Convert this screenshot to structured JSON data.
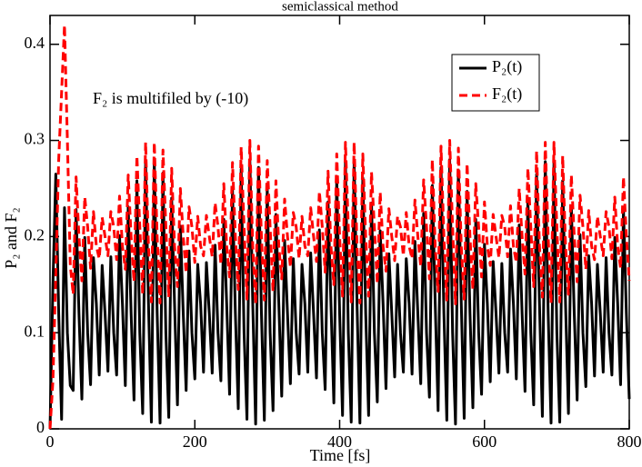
{
  "chart_data": {
    "type": "line",
    "title": "semiclassical method",
    "xlabel": "Time [fs]",
    "ylabel": "P₂ and F₂",
    "annotation": "F₂ is multifiled by (-10)",
    "legend": "upper right",
    "xlim": [
      0,
      800
    ],
    "xticks": [
      0,
      200,
      400,
      600,
      800
    ],
    "ylim": [
      0,
      0.43
    ],
    "yticks": [
      0,
      0.1,
      0.2,
      0.3,
      0.4
    ],
    "x": [
      0,
      4,
      8,
      12,
      16,
      20,
      24,
      28,
      32,
      36,
      40,
      44,
      48,
      52,
      56,
      60,
      64,
      68,
      72,
      76,
      80,
      84,
      88,
      92,
      96,
      100,
      104,
      108,
      112,
      116,
      120,
      124,
      128,
      132,
      136,
      140,
      144,
      148,
      152,
      156,
      160,
      164,
      168,
      172,
      176,
      180,
      184,
      188,
      192,
      196,
      200,
      204,
      208,
      212,
      216,
      220,
      224,
      228,
      232,
      236,
      240,
      244,
      248,
      252,
      256,
      260,
      264,
      268,
      272,
      276,
      280,
      284,
      288,
      292,
      296,
      300,
      304,
      308,
      312,
      316,
      320,
      324,
      328,
      332,
      336,
      340,
      344,
      348,
      352,
      356,
      360,
      364,
      368,
      372,
      376,
      380,
      384,
      388,
      392,
      396,
      400,
      404,
      408,
      412,
      416,
      420,
      424,
      428,
      432,
      436,
      440,
      444,
      448,
      452,
      456,
      460,
      464,
      468,
      472,
      476,
      480,
      484,
      488,
      492,
      496,
      500,
      504,
      508,
      512,
      516,
      520,
      524,
      528,
      532,
      536,
      540,
      544,
      548,
      552,
      556,
      560,
      564,
      568,
      572,
      576,
      580,
      584,
      588,
      592,
      596,
      600,
      604,
      608,
      612,
      616,
      620,
      624,
      628,
      632,
      636,
      640,
      644,
      648,
      652,
      656,
      660,
      664,
      668,
      672,
      676,
      680,
      684,
      688,
      692,
      696,
      700,
      704,
      708,
      712,
      716,
      720,
      724,
      728,
      732,
      736,
      740,
      744,
      748,
      752,
      756,
      760,
      764,
      768,
      772,
      776,
      780,
      784,
      788,
      792,
      796,
      800
    ],
    "series": [
      {
        "name": "P₂(t)",
        "color": "#000000",
        "dash": false,
        "values": [
          0,
          0.15,
          0.265,
          0.12,
          0.01,
          0.23,
          0.1,
          0.045,
          0.04,
          0.228,
          0.12,
          0.031,
          0.199,
          0.1,
          0.046,
          0.178,
          0.13,
          0.056,
          0.17,
          0.12,
          0.06,
          0.179,
          0.1,
          0.056,
          0.201,
          0.13,
          0.045,
          0.231,
          0.12,
          0.03,
          0.258,
          0.1,
          0.016,
          0.277,
          0.13,
          0.007,
          0.278,
          0.12,
          0.006,
          0.266,
          0.1,
          0.012,
          0.24,
          0.13,
          0.025,
          0.211,
          0.12,
          0.04,
          0.185,
          0.1,
          0.052,
          0.171,
          0.13,
          0.059,
          0.173,
          0.12,
          0.058,
          0.191,
          0.1,
          0.05,
          0.218,
          0.13,
          0.036,
          0.248,
          0.12,
          0.021,
          0.27,
          0.1,
          0.01,
          0.28,
          0.13,
          0.005,
          0.272,
          0.12,
          0.009,
          0.251,
          0.1,
          0.019,
          0.223,
          0.13,
          0.034,
          0.196,
          0.12,
          0.047,
          0.177,
          0.1,
          0.057,
          0.171,
          0.13,
          0.059,
          0.183,
          0.12,
          0.053,
          0.207,
          0.1,
          0.041,
          0.236,
          0.13,
          0.027,
          0.261,
          0.12,
          0.014,
          0.277,
          0.1,
          0.007,
          0.278,
          0.13,
          0.006,
          0.261,
          0.12,
          0.014,
          0.235,
          0.1,
          0.028,
          0.206,
          0.13,
          0.042,
          0.182,
          0.12,
          0.054,
          0.171,
          0.1,
          0.059,
          0.177,
          0.13,
          0.057,
          0.195,
          0.12,
          0.047,
          0.224,
          0.1,
          0.033,
          0.253,
          0.13,
          0.019,
          0.272,
          0.12,
          0.009,
          0.28,
          0.1,
          0.005,
          0.269,
          0.13,
          0.011,
          0.247,
          0.12,
          0.022,
          0.218,
          0.1,
          0.036,
          0.192,
          0.13,
          0.049,
          0.174,
          0.12,
          0.058,
          0.172,
          0.1,
          0.059,
          0.187,
          0.13,
          0.052,
          0.212,
          0.12,
          0.039,
          0.24,
          0.1,
          0.025,
          0.265,
          0.13,
          0.013,
          0.278,
          0.12,
          0.006,
          0.277,
          0.1,
          0.007,
          0.258,
          0.13,
          0.016,
          0.231,
          0.12,
          0.03,
          0.202,
          0.1,
          0.044,
          0.18,
          0.13,
          0.055,
          0.171,
          0.12,
          0.059,
          0.178,
          0.1,
          0.056,
          0.199,
          0.13,
          0.046,
          0.228,
          0.12,
          0.031
        ]
      },
      {
        "name": "F₂(t)",
        "color": "#ff0000",
        "dash": true,
        "values": [
          0,
          0.05,
          0.16,
          0.28,
          0.35,
          0.42,
          0.3,
          0.17,
          0.14,
          0.262,
          0.2,
          0.154,
          0.241,
          0.21,
          0.167,
          0.226,
          0.19,
          0.177,
          0.22,
          0.2,
          0.18,
          0.226,
          0.21,
          0.176,
          0.242,
          0.19,
          0.166,
          0.264,
          0.2,
          0.153,
          0.284,
          0.21,
          0.14,
          0.298,
          0.19,
          0.132,
          0.298,
          0.2,
          0.131,
          0.29,
          0.21,
          0.137,
          0.271,
          0.19,
          0.148,
          0.25,
          0.2,
          0.162,
          0.231,
          0.21,
          0.173,
          0.221,
          0.19,
          0.18,
          0.222,
          0.2,
          0.179,
          0.235,
          0.21,
          0.171,
          0.255,
          0.19,
          0.158,
          0.277,
          0.2,
          0.145,
          0.293,
          0.21,
          0.135,
          0.3,
          0.19,
          0.13,
          0.294,
          0.2,
          0.134,
          0.279,
          0.21,
          0.143,
          0.258,
          0.19,
          0.156,
          0.239,
          0.2,
          0.168,
          0.225,
          0.21,
          0.177,
          0.221,
          0.19,
          0.18,
          0.23,
          0.2,
          0.174,
          0.247,
          0.21,
          0.163,
          0.268,
          0.19,
          0.15,
          0.286,
          0.2,
          0.138,
          0.298,
          0.21,
          0.132,
          0.298,
          0.19,
          0.131,
          0.286,
          0.2,
          0.138,
          0.267,
          0.21,
          0.151,
          0.246,
          0.19,
          0.164,
          0.229,
          0.2,
          0.175,
          0.221,
          0.21,
          0.18,
          0.225,
          0.19,
          0.177,
          0.238,
          0.2,
          0.169,
          0.259,
          0.21,
          0.156,
          0.28,
          0.19,
          0.143,
          0.294,
          0.2,
          0.134,
          0.3,
          0.21,
          0.13,
          0.292,
          0.19,
          0.135,
          0.276,
          0.2,
          0.145,
          0.255,
          0.21,
          0.158,
          0.236,
          0.19,
          0.17,
          0.223,
          0.2,
          0.178,
          0.222,
          0.21,
          0.179,
          0.232,
          0.19,
          0.173,
          0.25,
          0.2,
          0.161,
          0.271,
          0.21,
          0.148,
          0.289,
          0.19,
          0.137,
          0.298,
          0.2,
          0.131,
          0.298,
          0.21,
          0.132,
          0.284,
          0.19,
          0.14,
          0.264,
          0.2,
          0.153,
          0.243,
          0.21,
          0.166,
          0.227,
          0.19,
          0.176,
          0.221,
          0.2,
          0.18,
          0.226,
          0.21,
          0.177,
          0.241,
          0.19,
          0.167,
          0.262,
          0.2,
          0.154
        ]
      }
    ]
  }
}
